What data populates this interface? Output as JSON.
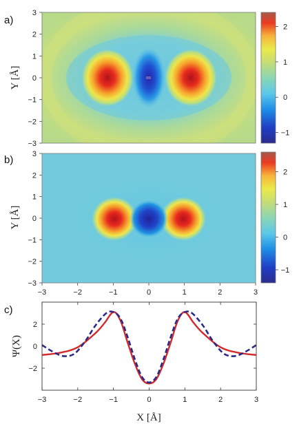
{
  "chart_data": [
    {
      "type": "heatmap",
      "panel_label": "a)",
      "ylabel": "Y [Å]",
      "xlim": [
        -3,
        3
      ],
      "ylim": [
        -3,
        3
      ],
      "yticks": [
        "−3",
        "−2",
        "−1",
        "0",
        "1",
        "2",
        "3"
      ],
      "colorbar": {
        "range": [
          -1.3,
          2.4
        ],
        "ticks": [
          {
            "v": -1,
            "label": "−1"
          },
          {
            "v": 0,
            "label": "0"
          },
          {
            "v": 1,
            "label": "1"
          },
          {
            "v": 2,
            "label": "2"
          }
        ]
      },
      "features": [
        {
          "x": -1.1,
          "y": 0,
          "value": 2.4
        },
        {
          "x": 0,
          "y": 0,
          "value": -1.3
        },
        {
          "x": 1.1,
          "y": 0,
          "value": 2.4
        }
      ],
      "background_value": 0.9
    },
    {
      "type": "heatmap",
      "panel_label": "b)",
      "ylabel": "Y [Å]",
      "xlim": [
        -3,
        3
      ],
      "ylim": [
        -3,
        3
      ],
      "xticks": [
        "−3",
        "−2",
        "−1",
        "0",
        "1",
        "2",
        "3"
      ],
      "yticks": [
        "−3",
        "−2",
        "−1",
        "0",
        "1",
        "2",
        "3"
      ],
      "colorbar": {
        "range": [
          -1.4,
          2.6
        ],
        "ticks": [
          {
            "v": -1,
            "label": "−1"
          },
          {
            "v": 0,
            "label": "0"
          },
          {
            "v": 1,
            "label": "1"
          },
          {
            "v": 2,
            "label": "2"
          }
        ]
      },
      "features": [
        {
          "x": -1.0,
          "y": 0,
          "value": 2.6
        },
        {
          "x": 0,
          "y": 0,
          "value": -1.4
        },
        {
          "x": 1.0,
          "y": 0,
          "value": 2.6
        }
      ],
      "background_value": 0.05
    },
    {
      "type": "line",
      "panel_label": "c)",
      "xlabel": "X [Å]",
      "ylabel": "Ψ(X)",
      "xlim": [
        -3,
        3
      ],
      "ylim": [
        -4,
        4
      ],
      "xticks": [
        "−3",
        "−2",
        "−1",
        "0",
        "1",
        "2",
        "3"
      ],
      "yticks": [
        {
          "v": -2,
          "label": "−2"
        },
        {
          "v": 0,
          "label": "0"
        },
        {
          "v": 2,
          "label": "2"
        }
      ],
      "series": [
        {
          "style": "solid",
          "color": "#d42a2a",
          "x": [
            -3,
            -2.5,
            -2,
            -1.5,
            -1.25,
            -1,
            -0.8,
            -0.6,
            -0.4,
            -0.2,
            0,
            0.2,
            0.4,
            0.6,
            0.8,
            1,
            1.25,
            1.5,
            2,
            2.5,
            3
          ],
          "y": [
            -0.8,
            -0.6,
            -0.1,
            1.2,
            2.1,
            3.1,
            2.3,
            0.3,
            -1.6,
            -3.0,
            -3.4,
            -3.0,
            -1.6,
            0.3,
            2.3,
            3.1,
            2.1,
            1.2,
            -0.1,
            -0.6,
            -0.8
          ]
        },
        {
          "style": "dashed",
          "color": "#2a2a8a",
          "x": [
            -3,
            -2.7,
            -2.4,
            -2.1,
            -1.8,
            -1.5,
            -1.2,
            -1.0,
            -0.8,
            -0.6,
            -0.4,
            -0.2,
            0,
            0.2,
            0.4,
            0.6,
            0.8,
            1.0,
            1.2,
            1.5,
            1.8,
            2.1,
            2.4,
            2.7,
            3
          ],
          "y": [
            0.1,
            -0.5,
            -0.9,
            -0.7,
            0.4,
            1.9,
            3.0,
            3.1,
            2.5,
            0.8,
            -1.2,
            -2.8,
            -3.3,
            -2.8,
            -1.2,
            0.8,
            2.5,
            3.1,
            3.0,
            1.9,
            0.4,
            -0.7,
            -0.9,
            -0.5,
            0.1
          ]
        }
      ]
    }
  ]
}
